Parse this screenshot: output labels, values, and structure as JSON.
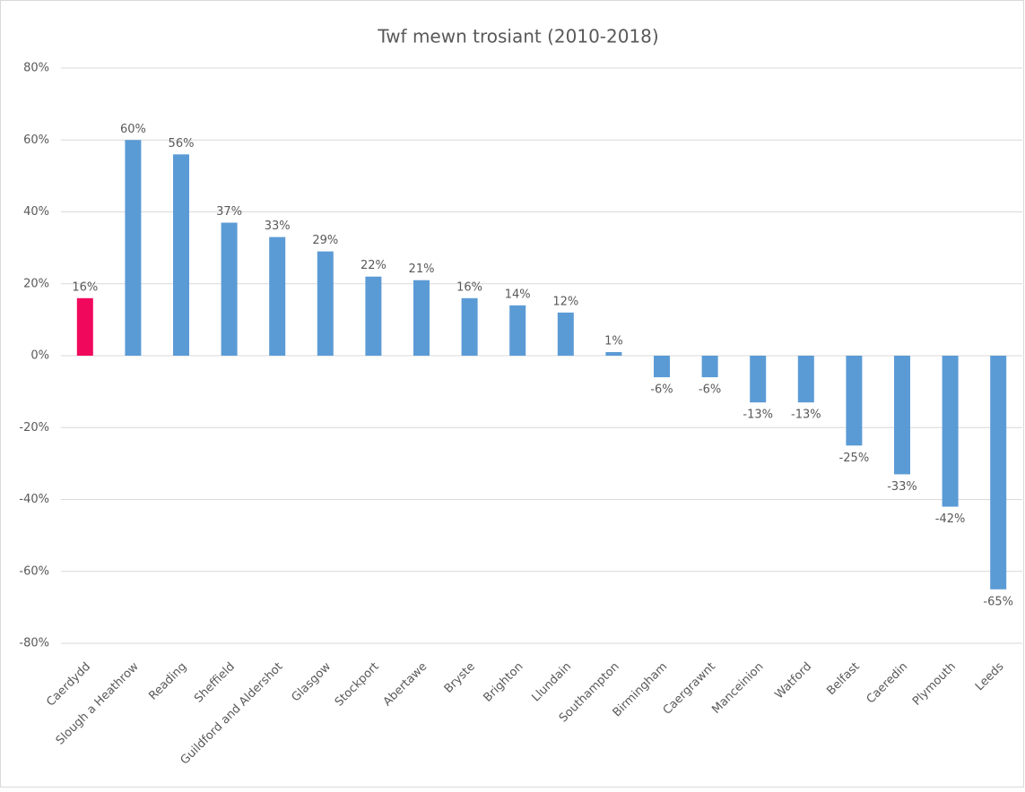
{
  "chart_data": {
    "type": "bar",
    "title": "Twf mewn trosiant (2010-2018)",
    "categories": [
      "Caerdydd",
      "Slough a Heathrow",
      "Reading",
      "Sheffield",
      "Guildford and Aldershot",
      "Glasgow",
      "Stockport",
      "Abertawe",
      "Bryste",
      "Brighton",
      "Llundain",
      "Southampton",
      "Birmingham",
      "Caergrawnt",
      "Manceinion",
      "Watford",
      "Belfast",
      "Caeredin",
      "Plymouth",
      "Leeds"
    ],
    "values": [
      16,
      60,
      56,
      37,
      33,
      29,
      22,
      21,
      16,
      14,
      12,
      1,
      -6,
      -6,
      -13,
      -13,
      -25,
      -33,
      -42,
      -65
    ],
    "value_labels": [
      "16%",
      "60%",
      "56%",
      "37%",
      "33%",
      "29%",
      "22%",
      "21%",
      "16%",
      "14%",
      "12%",
      "1%",
      "-6%",
      "-6%",
      "-13%",
      "-13%",
      "-25%",
      "-33%",
      "-42%",
      "-65%"
    ],
    "colors": [
      "#f0085c",
      "#5b9bd5",
      "#5b9bd5",
      "#5b9bd5",
      "#5b9bd5",
      "#5b9bd5",
      "#5b9bd5",
      "#5b9bd5",
      "#5b9bd5",
      "#5b9bd5",
      "#5b9bd5",
      "#5b9bd5",
      "#5b9bd5",
      "#5b9bd5",
      "#5b9bd5",
      "#5b9bd5",
      "#5b9bd5",
      "#5b9bd5",
      "#5b9bd5",
      "#5b9bd5"
    ],
    "ylim": [
      -80,
      80
    ],
    "yticks": [
      {
        "value": -80,
        "label": "-80%"
      },
      {
        "value": -60,
        "label": "-60%"
      },
      {
        "value": -40,
        "label": "-40%"
      },
      {
        "value": -20,
        "label": "-20%"
      },
      {
        "value": 0,
        "label": "0%"
      },
      {
        "value": 20,
        "label": "20%"
      },
      {
        "value": 40,
        "label": "40%"
      },
      {
        "value": 60,
        "label": "60%"
      },
      {
        "value": 80,
        "label": "80%"
      }
    ],
    "grid": true
  }
}
